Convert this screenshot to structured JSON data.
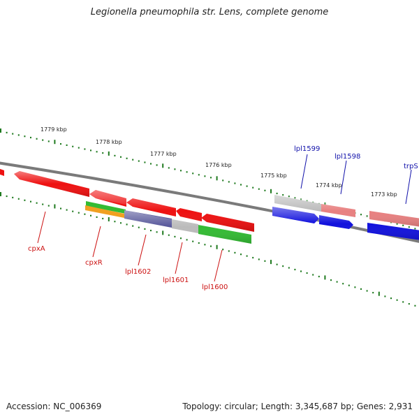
{
  "title": "Legionella pneumophila str. Lens, complete genome",
  "footer": {
    "accession": "Accession: NC_006369",
    "summary": "Topology: circular; Length: 3,345,687 bp; Genes: 2,931"
  },
  "colors": {
    "backbone": "#777777",
    "tick": "#1f7a1f",
    "red": "#ee1111",
    "gray": "#bbbbbb",
    "pink": "#e88080",
    "blue": "#1111dd",
    "green": "#33bb33",
    "orange": "#f0a020",
    "purple": "#555599",
    "label_red": "#cc1111",
    "label_blue": "#1111aa"
  },
  "kbp_labels": [
    "1779 kbp",
    "1778 kbp",
    "1777 kbp",
    "1776 kbp",
    "1775 kbp",
    "1774 kbp",
    "1773 kbp"
  ],
  "gene_labels": [
    {
      "name": "cpxA",
      "color": "label_red"
    },
    {
      "name": "cpxR",
      "color": "label_red"
    },
    {
      "name": "lpl1602",
      "color": "label_red"
    },
    {
      "name": "lpl1601",
      "color": "label_red"
    },
    {
      "name": "lpl1600",
      "color": "label_red"
    },
    {
      "name": "lpl1599",
      "color": "label_blue"
    },
    {
      "name": "lpl1598",
      "color": "label_blue"
    },
    {
      "name": "trpS",
      "color": "label_blue"
    }
  ]
}
